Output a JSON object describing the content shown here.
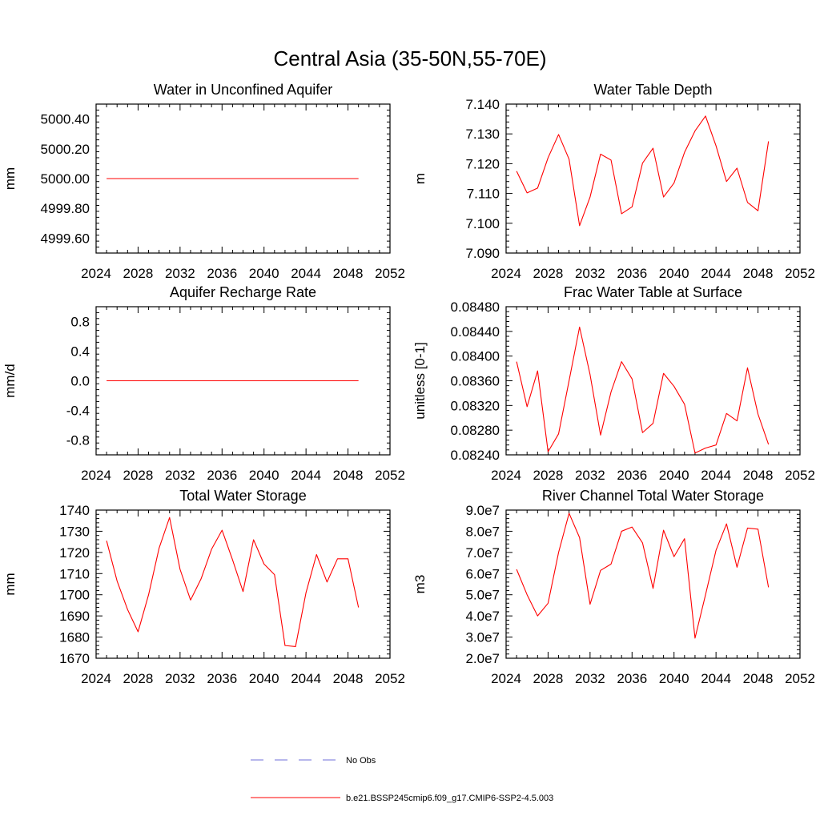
{
  "figure": {
    "title": "Central Asia (35-50N,55-70E)"
  },
  "legend": {
    "placement": "bottom-center",
    "entries": [
      {
        "label": "No Obs",
        "color": "#6f6fd8",
        "style": "dashed"
      },
      {
        "label": "b.e21.BSSP245cmip6.f09_g17.CMIP6-SSP2-4.5.003",
        "color": "#ff0000",
        "style": "solid"
      }
    ]
  },
  "chart_data": [
    {
      "type": "line",
      "title": "Water in Unconfined Aquifer",
      "ylabel": "mm",
      "xlim": [
        2024,
        2052
      ],
      "ylim": [
        4999.5,
        5000.5
      ],
      "x_ticks": [
        "2024",
        "2028",
        "2032",
        "2036",
        "2040",
        "2044",
        "2048",
        "2052"
      ],
      "x_tick_values": [
        2024,
        2028,
        2032,
        2036,
        2040,
        2044,
        2048,
        2052
      ],
      "y_ticks": [
        "4999.60",
        "4999.80",
        "5000.00",
        "5000.20",
        "5000.40"
      ],
      "y_tick_values": [
        4999.6,
        4999.8,
        5000.0,
        5000.2,
        5000.4
      ],
      "grid": false,
      "series": [
        {
          "color": "#ff0000",
          "x": [
            2025,
            2049
          ],
          "values": [
            5000.0,
            5000.0
          ]
        }
      ]
    },
    {
      "type": "line",
      "title": "Water Table Depth",
      "ylabel": "m",
      "xlim": [
        2024,
        2052
      ],
      "ylim": [
        7.09,
        7.14
      ],
      "x_ticks": [
        "2024",
        "2028",
        "2032",
        "2036",
        "2040",
        "2044",
        "2048",
        "2052"
      ],
      "x_tick_values": [
        2024,
        2028,
        2032,
        2036,
        2040,
        2044,
        2048,
        2052
      ],
      "y_ticks": [
        "7.090",
        "7.100",
        "7.110",
        "7.120",
        "7.130",
        "7.140"
      ],
      "y_tick_values": [
        7.09,
        7.1,
        7.11,
        7.12,
        7.13,
        7.14
      ],
      "grid": false,
      "series": [
        {
          "color": "#ff0000",
          "x": [
            2025,
            2026,
            2027,
            2028,
            2029,
            2030,
            2031,
            2032,
            2033,
            2034,
            2035,
            2036,
            2037,
            2038,
            2039,
            2040,
            2041,
            2042,
            2043,
            2044,
            2045,
            2046,
            2047,
            2048,
            2049
          ],
          "values": [
            7.1175,
            7.1102,
            7.1118,
            7.122,
            7.1298,
            7.1215,
            7.0992,
            7.1088,
            7.1232,
            7.1212,
            7.1032,
            7.1055,
            7.1202,
            7.1252,
            7.1088,
            7.1135,
            7.1238,
            7.131,
            7.136,
            7.126,
            7.114,
            7.1185,
            7.107,
            7.1042,
            7.1275
          ]
        }
      ]
    },
    {
      "type": "line",
      "title": "Aquifer Recharge Rate",
      "ylabel": "mm/d",
      "xlim": [
        2024,
        2052
      ],
      "ylim": [
        -1.0,
        1.0
      ],
      "x_ticks": [
        "2024",
        "2028",
        "2032",
        "2036",
        "2040",
        "2044",
        "2048",
        "2052"
      ],
      "x_tick_values": [
        2024,
        2028,
        2032,
        2036,
        2040,
        2044,
        2048,
        2052
      ],
      "y_ticks": [
        "-0.8",
        "-0.4",
        "0.0",
        "0.4",
        "0.8"
      ],
      "y_tick_values": [
        -0.8,
        -0.4,
        0.0,
        0.4,
        0.8
      ],
      "grid": false,
      "series": [
        {
          "color": "#ff0000",
          "x": [
            2025,
            2049
          ],
          "values": [
            0.0,
            0.0
          ]
        }
      ]
    },
    {
      "type": "line",
      "title": "Frac Water Table at Surface",
      "ylabel": "unitless [0-1]",
      "xlim": [
        2024,
        2052
      ],
      "ylim": [
        0.0824,
        0.0848
      ],
      "x_ticks": [
        "2024",
        "2028",
        "2032",
        "2036",
        "2040",
        "2044",
        "2048",
        "2052"
      ],
      "x_tick_values": [
        2024,
        2028,
        2032,
        2036,
        2040,
        2044,
        2048,
        2052
      ],
      "y_ticks": [
        "0.08240",
        "0.08280",
        "0.08320",
        "0.08360",
        "0.08400",
        "0.08440",
        "0.08480"
      ],
      "y_tick_values": [
        0.0824,
        0.0828,
        0.0832,
        0.0836,
        0.084,
        0.0844,
        0.0848
      ],
      "grid": false,
      "series": [
        {
          "color": "#ff0000",
          "x": [
            2025,
            2026,
            2027,
            2028,
            2029,
            2030,
            2031,
            2032,
            2033,
            2034,
            2035,
            2036,
            2037,
            2038,
            2039,
            2040,
            2041,
            2042,
            2043,
            2044,
            2045,
            2046,
            2047,
            2048,
            2049
          ],
          "values": [
            0.08391,
            0.08318,
            0.08376,
            0.08245,
            0.08274,
            0.0836,
            0.08447,
            0.0837,
            0.08272,
            0.08342,
            0.08391,
            0.08363,
            0.08276,
            0.08291,
            0.08372,
            0.08351,
            0.08322,
            0.08243,
            0.08251,
            0.08256,
            0.08307,
            0.08295,
            0.08381,
            0.08306,
            0.08257
          ]
        }
      ]
    },
    {
      "type": "line",
      "title": "Total Water Storage",
      "ylabel": "mm",
      "xlim": [
        2024,
        2052
      ],
      "ylim": [
        1670,
        1740
      ],
      "x_ticks": [
        "2024",
        "2028",
        "2032",
        "2036",
        "2040",
        "2044",
        "2048",
        "2052"
      ],
      "x_tick_values": [
        2024,
        2028,
        2032,
        2036,
        2040,
        2044,
        2048,
        2052
      ],
      "y_ticks": [
        "1670",
        "1680",
        "1690",
        "1700",
        "1710",
        "1720",
        "1730",
        "1740"
      ],
      "y_tick_values": [
        1670,
        1680,
        1690,
        1700,
        1710,
        1720,
        1730,
        1740
      ],
      "grid": false,
      "series": [
        {
          "color": "#ff0000",
          "x": [
            2025,
            2026,
            2027,
            2028,
            2029,
            2030,
            2031,
            2032,
            2033,
            2034,
            2035,
            2036,
            2037,
            2038,
            2039,
            2040,
            2041,
            2042,
            2043,
            2044,
            2045,
            2046,
            2047,
            2048,
            2049
          ],
          "values": [
            1725.5,
            1706.5,
            1693.0,
            1682.5,
            1700.0,
            1722.0,
            1736.5,
            1712.0,
            1697.5,
            1707.5,
            1721.5,
            1730.5,
            1716.5,
            1701.5,
            1726.0,
            1714.5,
            1709.5,
            1676.0,
            1675.5,
            1701.0,
            1719.0,
            1706.0,
            1717.0,
            1717.0,
            1694.0
          ]
        }
      ]
    },
    {
      "type": "line",
      "title": "River Channel Total Water Storage",
      "ylabel": "m3",
      "xlim": [
        2024,
        2052
      ],
      "ylim": [
        20000000,
        90000000
      ],
      "x_ticks": [
        "2024",
        "2028",
        "2032",
        "2036",
        "2040",
        "2044",
        "2048",
        "2052"
      ],
      "x_tick_values": [
        2024,
        2028,
        2032,
        2036,
        2040,
        2044,
        2048,
        2052
      ],
      "y_ticks": [
        "2.0e7",
        "3.0e7",
        "4.0e7",
        "5.0e7",
        "6.0e7",
        "7.0e7",
        "8.0e7",
        "9.0e7"
      ],
      "y_tick_values": [
        20000000,
        30000000,
        40000000,
        50000000,
        60000000,
        70000000,
        80000000,
        90000000
      ],
      "grid": false,
      "series": [
        {
          "color": "#ff0000",
          "x": [
            2025,
            2026,
            2027,
            2028,
            2029,
            2030,
            2031,
            2032,
            2033,
            2034,
            2035,
            2036,
            2037,
            2038,
            2039,
            2040,
            2041,
            2042,
            2043,
            2044,
            2045,
            2046,
            2047,
            2048,
            2049
          ],
          "values": [
            62000000,
            50000000,
            40000000,
            46000000,
            70000000,
            88500000,
            77000000,
            45500000,
            61500000,
            64500000,
            80000000,
            82000000,
            74500000,
            53000000,
            80500000,
            68000000,
            76500000,
            29500000,
            50000000,
            71000000,
            83500000,
            63000000,
            81500000,
            81000000,
            53500000
          ]
        }
      ]
    }
  ]
}
